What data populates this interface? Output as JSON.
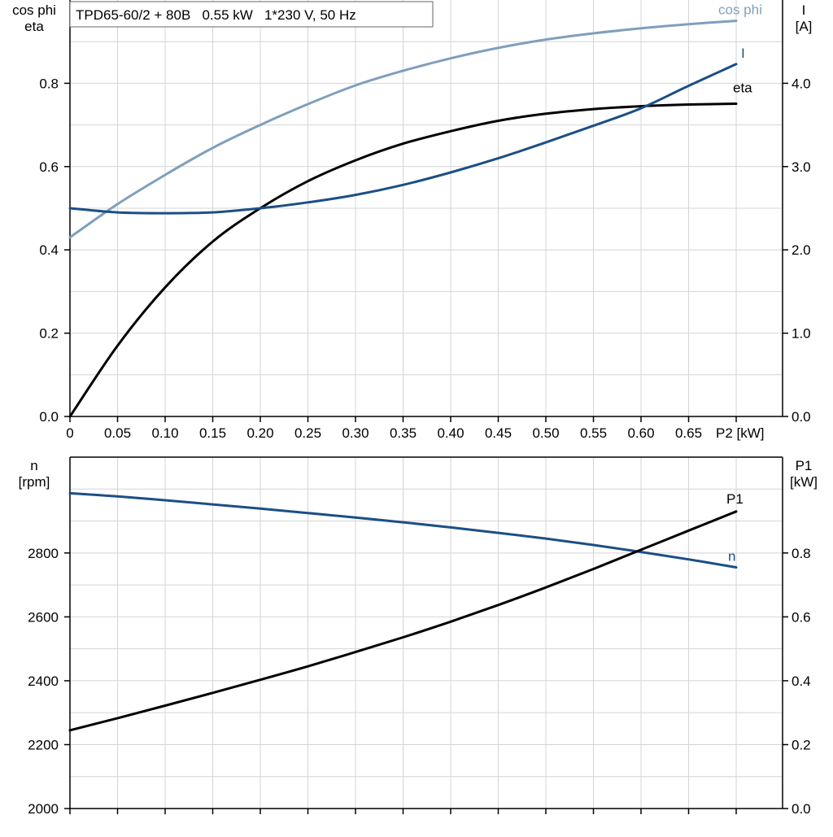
{
  "chart_data": [
    {
      "type": "line",
      "title": "TPD65-60/2 + 80B   0.55 kW   1*230 V, 50 Hz",
      "xlabel": "P2 [kW]",
      "x_ticks": [
        "0",
        "0.05",
        "0.10",
        "0.15",
        "0.20",
        "0.25",
        "0.30",
        "0.35",
        "0.40",
        "0.45",
        "0.50",
        "0.55",
        "0.60",
        "0.65",
        "P2 [kW]"
      ],
      "xlim": [
        0,
        0.75
      ],
      "y_left_label": [
        "cos phi",
        "eta"
      ],
      "y_left_ticks": [
        "0.0",
        "0.2",
        "0.4",
        "0.6",
        "0.8"
      ],
      "ylim_left": [
        0,
        1.0
      ],
      "y_right_label": [
        "I",
        "[A]"
      ],
      "y_right_ticks": [
        "0.0",
        "1.0",
        "2.0",
        "3.0",
        "4.0"
      ],
      "ylim_right": [
        0,
        5.0
      ],
      "grid": true,
      "series": [
        {
          "name": "cos phi",
          "axis": "left",
          "color": "#7f9fbc",
          "x": [
            0,
            0.05,
            0.1,
            0.15,
            0.2,
            0.25,
            0.3,
            0.35,
            0.4,
            0.45,
            0.5,
            0.55,
            0.6,
            0.65,
            0.7
          ],
          "y": [
            0.43,
            0.51,
            0.58,
            0.645,
            0.7,
            0.75,
            0.795,
            0.83,
            0.86,
            0.885,
            0.905,
            0.92,
            0.932,
            0.942,
            0.95
          ]
        },
        {
          "name": "eta",
          "axis": "left",
          "color": "#000000",
          "x": [
            0,
            0.05,
            0.1,
            0.15,
            0.2,
            0.25,
            0.3,
            0.35,
            0.4,
            0.45,
            0.5,
            0.55,
            0.6,
            0.65,
            0.7
          ],
          "y": [
            0.0,
            0.17,
            0.31,
            0.42,
            0.5,
            0.565,
            0.615,
            0.655,
            0.685,
            0.71,
            0.727,
            0.738,
            0.745,
            0.749,
            0.751
          ]
        },
        {
          "name": "I",
          "axis": "right",
          "color": "#1b4f85",
          "x": [
            0,
            0.05,
            0.1,
            0.15,
            0.2,
            0.25,
            0.3,
            0.35,
            0.4,
            0.45,
            0.5,
            0.55,
            0.6,
            0.65,
            0.7
          ],
          "y": [
            2.5,
            2.45,
            2.44,
            2.45,
            2.5,
            2.57,
            2.66,
            2.78,
            2.93,
            3.1,
            3.29,
            3.49,
            3.7,
            3.97,
            4.23
          ]
        }
      ]
    },
    {
      "type": "line",
      "xlim": [
        0,
        0.75
      ],
      "y_left_label": [
        "n",
        "[rpm]"
      ],
      "y_left_ticks": [
        "2000",
        "2200",
        "2400",
        "2600",
        "2800"
      ],
      "ylim_left": [
        2000,
        3100
      ],
      "y_right_label": [
        "P1",
        "[kW]"
      ],
      "y_right_ticks": [
        "0.0",
        "0.2",
        "0.4",
        "0.6",
        "0.8"
      ],
      "ylim_right": [
        0,
        1.1
      ],
      "grid": true,
      "series": [
        {
          "name": "n",
          "axis": "left",
          "color": "#1b4f85",
          "x": [
            0,
            0.05,
            0.1,
            0.15,
            0.2,
            0.25,
            0.3,
            0.35,
            0.4,
            0.45,
            0.5,
            0.55,
            0.6,
            0.65,
            0.7
          ],
          "y": [
            2987,
            2977,
            2965,
            2952,
            2939,
            2925,
            2911,
            2896,
            2880,
            2863,
            2845,
            2825,
            2803,
            2780,
            2755
          ]
        },
        {
          "name": "P1",
          "axis": "right",
          "color": "#000000",
          "x": [
            0,
            0.05,
            0.1,
            0.15,
            0.2,
            0.25,
            0.3,
            0.35,
            0.4,
            0.45,
            0.5,
            0.55,
            0.6,
            0.65,
            0.7
          ],
          "y": [
            0.245,
            0.283,
            0.322,
            0.362,
            0.403,
            0.445,
            0.49,
            0.536,
            0.585,
            0.637,
            0.692,
            0.75,
            0.81,
            0.87,
            0.93
          ]
        }
      ]
    }
  ]
}
